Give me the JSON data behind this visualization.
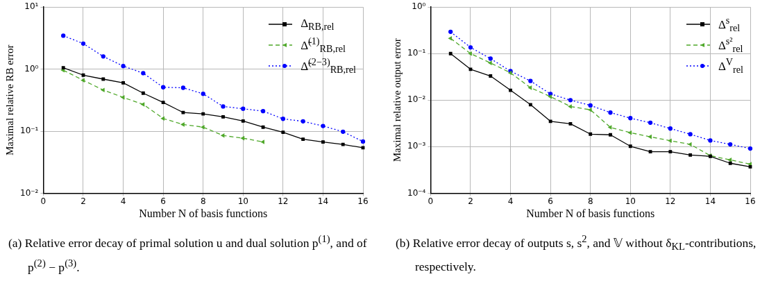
{
  "chart_data": [
    {
      "type": "line",
      "xlabel": "Number N of basis functions",
      "ylabel": "Maximal relative RB error",
      "x": [
        1,
        2,
        3,
        4,
        5,
        6,
        7,
        8,
        9,
        10,
        11,
        12,
        13,
        14,
        15,
        16
      ],
      "series": [
        {
          "name": "Δ$_{RB,rel}$",
          "color": "#000000",
          "marker": "square",
          "line_style": "solid",
          "values": [
            1.05,
            0.8,
            0.69,
            0.6,
            0.41,
            0.29,
            0.2,
            0.19,
            0.17,
            0.146,
            0.116,
            0.096,
            0.074,
            0.067,
            0.061,
            0.054
          ]
        },
        {
          "name": "Δ̃$^{(1)}$$_{RB,rel}$",
          "color": "#4fa82a",
          "marker": "triangle",
          "line_style": "dashed",
          "values": [
            0.96,
            0.66,
            0.46,
            0.35,
            0.27,
            0.16,
            0.128,
            0.116,
            0.085,
            0.077,
            0.067,
            null,
            null,
            null,
            null,
            null
          ]
        },
        {
          "name": "Δ̃$^{(2−3)}$$_{RB,rel}$",
          "color": "#0000ff",
          "marker": "circle",
          "line_style": "dotted",
          "values": [
            3.46,
            2.58,
            1.6,
            1.12,
            0.86,
            0.51,
            0.5,
            0.4,
            0.25,
            0.23,
            0.21,
            0.158,
            0.144,
            0.121,
            0.098,
            0.068
          ]
        }
      ],
      "log": "y",
      "xlim": [
        0,
        16
      ],
      "xticks": [
        0,
        2,
        4,
        6,
        8,
        10,
        12,
        14,
        16
      ],
      "ylim": [
        0.01,
        10
      ],
      "yticks": [
        {
          "value": 0.01,
          "label": "10⁻²"
        },
        {
          "value": 0.1,
          "label": "10⁻¹"
        },
        {
          "value": 1,
          "label": "10⁰"
        },
        {
          "value": 10,
          "label": "10¹"
        }
      ],
      "grid": true,
      "legend": "top right",
      "annotations": [
        "(a) Relative error decay of primal solution u and dual solution p$^{(1)}$, and of p$^{(2)}$ − p$^{(3)}$."
      ]
    },
    {
      "type": "line",
      "xlabel": "Number N of basis functions",
      "ylabel": "Maximal relative output error",
      "x": [
        1,
        2,
        3,
        4,
        5,
        6,
        7,
        8,
        9,
        10,
        11,
        12,
        13,
        14,
        15,
        16
      ],
      "series": [
        {
          "name": "Δ$^{s}$$_{rel}$",
          "color": "#000000",
          "marker": "square",
          "line_style": "solid",
          "values": [
            0.1,
            0.046,
            0.033,
            0.0163,
            0.008,
            0.0035,
            0.0031,
            0.00186,
            0.0018,
            0.00102,
            0.00078,
            0.00078,
            0.00066,
            0.00062,
            0.00044,
            0.00037
          ]
        },
        {
          "name": "Δ$^{s²}$$_{rel}$",
          "color": "#4fa82a",
          "marker": "triangle",
          "line_style": "dashed",
          "values": [
            0.213,
            0.1,
            0.063,
            0.0386,
            0.0185,
            0.0119,
            0.0073,
            0.0062,
            0.0026,
            0.002,
            0.00163,
            0.00134,
            0.00112,
            0.00064,
            0.00052,
            0.00042
          ]
        },
        {
          "name": "Δ$^{V}$$_{rel}$",
          "color": "#0000ff",
          "marker": "circle",
          "line_style": "dotted",
          "values": [
            0.294,
            0.136,
            0.078,
            0.042,
            0.0258,
            0.0136,
            0.01,
            0.0077,
            0.0054,
            0.0041,
            0.00327,
            0.00245,
            0.00185,
            0.00136,
            0.00112,
            0.00091
          ]
        }
      ],
      "log": "y",
      "xlim": [
        0,
        16
      ],
      "xticks": [
        0,
        2,
        4,
        6,
        8,
        10,
        12,
        14,
        16
      ],
      "ylim": [
        0.0001,
        1
      ],
      "yticks": [
        {
          "value": 0.0001,
          "label": "10⁻⁴"
        },
        {
          "value": 0.001,
          "label": "10⁻³"
        },
        {
          "value": 0.01,
          "label": "10⁻²"
        },
        {
          "value": 0.1,
          "label": "10⁻¹"
        },
        {
          "value": 1,
          "label": "10⁰"
        }
      ],
      "grid": true,
      "legend": "top right",
      "annotations": [
        "(b) Relative error decay of outputs s, s$^{2}$, and 𝕍 without δ$_{KL}$-contributions, respectively."
      ]
    }
  ]
}
